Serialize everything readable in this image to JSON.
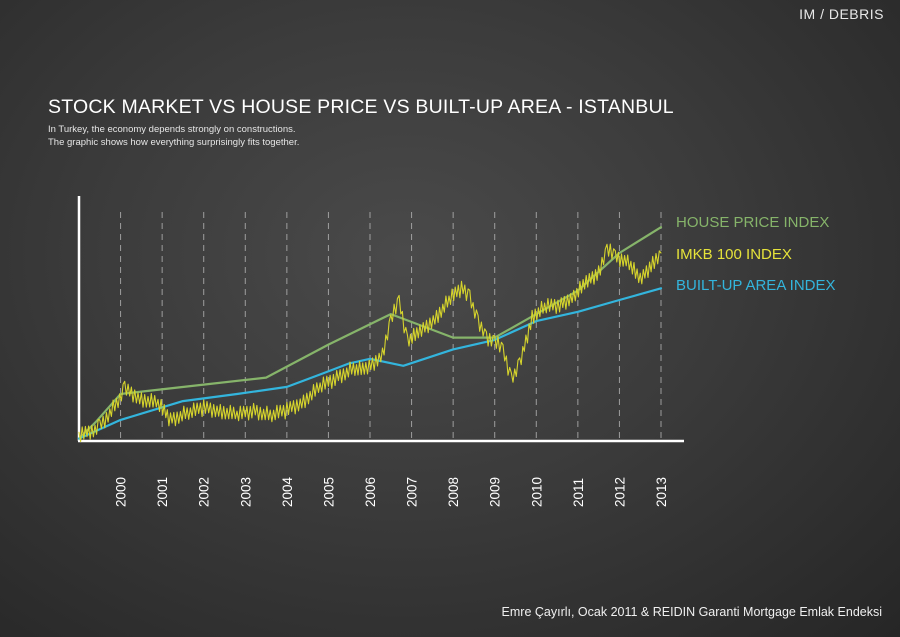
{
  "brand": "IM / DEBRIS",
  "title": "STOCK MARKET VS HOUSE PRICE VS BUILT-UP AREA  -  ISTANBUL",
  "subtitle_lines": [
    "In Turkey, the economy depends strongly on constructions.",
    "The graphic shows how everything surprisingly fits together."
  ],
  "source": "Emre Çayırlı, Ocak 2011 & REIDIN Garanti Mortgage Emlak Endeksi",
  "colors": {
    "house": "#86b46a",
    "imkb": "#d6d42c",
    "builtup": "#33b5dd",
    "axis": "#ffffff",
    "grid": "#bdbdbd"
  },
  "chart_data": {
    "type": "line",
    "title": "STOCK MARKET VS HOUSE PRICE VS BUILT-UP AREA  -  ISTANBUL",
    "x_tick_labels": [
      "2000",
      "2001",
      "2002",
      "2003",
      "2004",
      "2005",
      "2006",
      "2007",
      "2008",
      "2009",
      "2010",
      "2011",
      "2012",
      "2013"
    ],
    "x_range": [
      1999.0,
      2013.0
    ],
    "y_range": [
      0,
      100
    ],
    "y_axis_ticks": false,
    "grid": "vertical dashed lines at each year",
    "legend_position": "right",
    "series": [
      {
        "name": "HOUSE PRICE INDEX",
        "color": "#86b46a",
        "x": [
          1999.0,
          1999.4,
          2000.0,
          2000.5,
          2002.0,
          2003.5,
          2005.0,
          2006.5,
          2008.0,
          2009.0,
          2010.0,
          2011.0,
          2012.0,
          2013.0
        ],
        "y": [
          1,
          8,
          20,
          21,
          24,
          27,
          41,
          54,
          44,
          44,
          54,
          64,
          80,
          91
        ]
      },
      {
        "name": "IMKB 100 INDEX",
        "color": "#d6d42c",
        "x": [
          1999.0,
          1999.5,
          1999.9,
          2000.1,
          2000.5,
          2000.9,
          2001.2,
          2001.6,
          2002.0,
          2002.4,
          2002.8,
          2003.2,
          2003.6,
          2004.0,
          2004.4,
          2004.8,
          2005.2,
          2005.6,
          2005.9,
          2006.3,
          2006.5,
          2006.7,
          2006.9,
          2007.2,
          2007.6,
          2007.9,
          2008.2,
          2008.4,
          2008.6,
          2008.8,
          2009.0,
          2009.2,
          2009.4,
          2009.6,
          2009.9,
          2010.2,
          2010.6,
          2010.9,
          2011.2,
          2011.5,
          2011.7,
          2011.9,
          2012.2,
          2012.5,
          2012.8,
          2013.0
        ],
        "y": [
          2,
          6,
          16,
          22,
          18,
          16,
          9,
          12,
          14,
          13,
          11,
          13,
          11,
          13,
          17,
          23,
          27,
          31,
          30,
          37,
          52,
          59,
          43,
          46,
          53,
          60,
          65,
          62,
          50,
          44,
          43,
          38,
          27,
          32,
          53,
          57,
          58,
          62,
          67,
          72,
          82,
          78,
          77,
          68,
          76,
          80
        ]
      },
      {
        "name": "BUILT-UP AREA INDEX",
        "color": "#33b5dd",
        "x": [
          1999.0,
          2000.0,
          2001.5,
          2002.8,
          2004.0,
          2004.9,
          2005.5,
          2006.0,
          2006.8,
          2008.0,
          2009.0,
          2010.0,
          2011.0,
          2012.0,
          2013.0
        ],
        "y": [
          1,
          9,
          17,
          20,
          23,
          29,
          33,
          35,
          32,
          39,
          43,
          51,
          55,
          60,
          65
        ]
      }
    ]
  }
}
